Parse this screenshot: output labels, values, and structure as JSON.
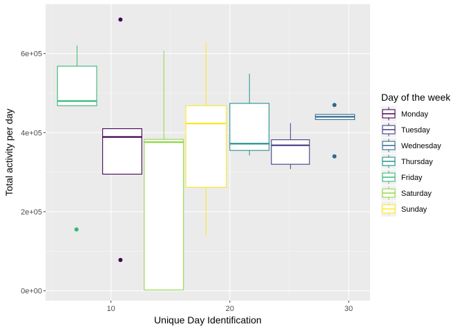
{
  "chart_data": {
    "type": "boxplot",
    "title": "",
    "xlabel": "Unique Day Identification",
    "ylabel": "Total activity per day",
    "xlim": [
      4.5,
      31.8
    ],
    "ylim": [
      -25000,
      725000
    ],
    "x_ticks": [
      10,
      20,
      30
    ],
    "x_tick_labels": [
      "10",
      "20",
      "30"
    ],
    "y_ticks": [
      0,
      200000,
      400000,
      600000
    ],
    "y_tick_labels": [
      "0e+00",
      "2e+05",
      "4e+05",
      "6e+05"
    ],
    "grid": true,
    "legend": {
      "title": "Day of the week",
      "position": "right"
    },
    "series": [
      {
        "name": "Monday",
        "color": "#440154",
        "x_left": 9.3,
        "x_right": 12.6,
        "whisker_low": 295000,
        "q1": 295000,
        "median": 389000,
        "q3": 410000,
        "whisker_high": 410000,
        "outliers": [
          {
            "x": 10.8,
            "y": 686000
          },
          {
            "x": 10.8,
            "y": 78000
          }
        ]
      },
      {
        "name": "Tuesday",
        "color": "#443A83",
        "x_left": 23.5,
        "x_right": 26.7,
        "whisker_low": 308000,
        "q1": 320000,
        "median": 368000,
        "q3": 382000,
        "whisker_high": 424000,
        "outliers": []
      },
      {
        "name": "Wednesday",
        "color": "#31688E",
        "x_left": 27.2,
        "x_right": 30.5,
        "whisker_low": 433000,
        "q1": 433000,
        "median": 440000,
        "q3": 446000,
        "whisker_high": 446000,
        "outliers": [
          {
            "x": 28.8,
            "y": 470000
          },
          {
            "x": 28.8,
            "y": 340000
          }
        ]
      },
      {
        "name": "Thursday",
        "color": "#21908C",
        "x_left": 20.0,
        "x_right": 23.3,
        "whisker_low": 342000,
        "q1": 355000,
        "median": 372000,
        "q3": 474000,
        "whisker_high": 549000,
        "outliers": []
      },
      {
        "name": "Friday",
        "color": "#35B779",
        "x_left": 5.5,
        "x_right": 8.8,
        "whisker_low": 468000,
        "q1": 468000,
        "median": 480000,
        "q3": 568000,
        "whisker_high": 620000,
        "outliers": [
          {
            "x": 7.1,
            "y": 155000
          }
        ]
      },
      {
        "name": "Saturday",
        "color": "#8FD744",
        "x_left": 12.8,
        "x_right": 16.1,
        "whisker_low": 2000,
        "q1": 2000,
        "median": 376000,
        "q3": 383000,
        "whisker_high": 607000,
        "outliers": []
      },
      {
        "name": "Sunday",
        "color": "#FDE725",
        "x_left": 16.3,
        "x_right": 19.7,
        "whisker_low": 138000,
        "q1": 262000,
        "median": 423000,
        "q3": 468000,
        "whisker_high": 630000,
        "outliers": []
      }
    ]
  }
}
